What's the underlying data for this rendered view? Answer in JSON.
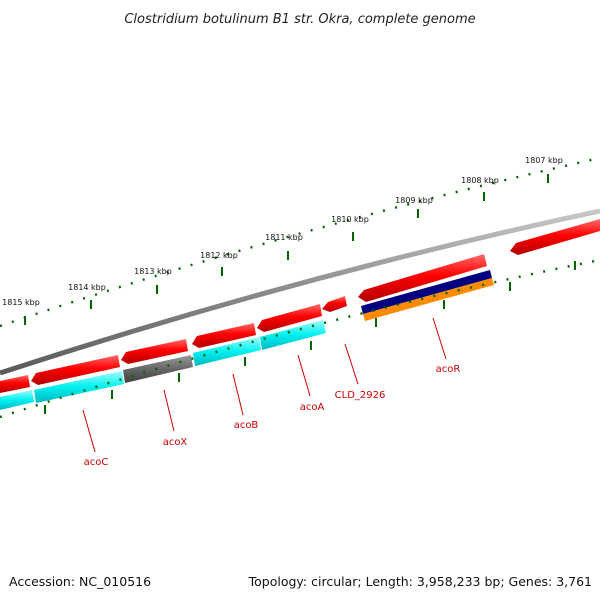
{
  "title": "Clostridium botulinum B1 str. Okra, complete genome",
  "tick_labels": [
    "1807 kbp",
    "1808 kbp",
    "1809 kbp",
    "1810 kbp",
    "1811 kbp",
    "1812 kbp",
    "1813 kbp",
    "1814 kbp",
    "1815 kbp"
  ],
  "gene_labels": {
    "acoC": "acoC",
    "acoX": "acoX",
    "acoB": "acoB",
    "acoA": "acoA",
    "cld": "CLD_2926",
    "acoR": "acoR"
  },
  "footer": {
    "accession": "Accession: NC_010516",
    "topology": "Topology: circular; Length: 3,958,233 bp; Genes: 3,761"
  },
  "colors": {
    "backbone": "#8a8a8a",
    "cds_forward": "#ff0000",
    "gene_cyan": "#00eeee",
    "gene_gray": "#666666",
    "gene_navy": "#000080",
    "gene_orange": "#ff8c00",
    "ticks": "#006600",
    "label_red": "#cc0000"
  }
}
